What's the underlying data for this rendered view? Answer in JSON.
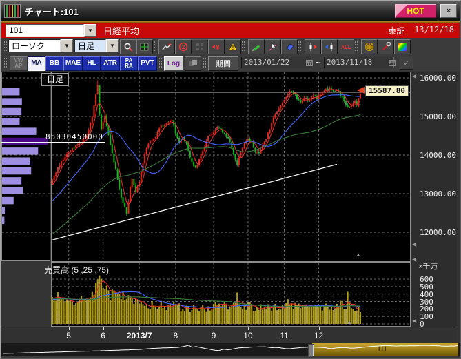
{
  "window": {
    "title": "チャート:101",
    "hot_button": "HOT",
    "close_button": "×"
  },
  "banner": {
    "symbol_code": "101",
    "symbol_name": "日経平均",
    "exchange": "東証",
    "date": "13/12/18"
  },
  "toolbar_main": {
    "chart_type_select": "ローソク",
    "timeframe_select": "日足",
    "icons": [
      {
        "name": "zoom-icon"
      },
      {
        "name": "grid-settings-icon"
      },
      {
        "name": "trend-tool-icon"
      },
      {
        "name": "compare-icon",
        "label": "2"
      },
      {
        "name": "layout-grid-icon",
        "disabled": true
      },
      {
        "name": "price-yen-icon",
        "label": "¥"
      },
      {
        "name": "alert-icon",
        "label": "!"
      },
      {
        "name": "draw-pencil-icon"
      },
      {
        "name": "select-cursor-icon"
      },
      {
        "name": "eraser-icon"
      },
      {
        "name": "candle-forward-icon"
      },
      {
        "name": "candle-back-icon"
      },
      {
        "name": "show-all-icon",
        "label": "ALL"
      },
      {
        "name": "web-link-icon"
      },
      {
        "name": "settings-wrench-icon"
      },
      {
        "name": "color-palette-icon"
      }
    ]
  },
  "toolbar_indicators": {
    "buttons": [
      {
        "label": "VWAP",
        "display": "VW\nAP",
        "state": "disabled"
      },
      {
        "label": "MA",
        "display": "MA",
        "state": "active"
      },
      {
        "label": "BB",
        "display": "BB",
        "state": "normal"
      },
      {
        "label": "MAE",
        "display": "MAE",
        "state": "normal"
      },
      {
        "label": "HL",
        "display": "HL",
        "state": "normal"
      },
      {
        "label": "ATR",
        "display": "ATR",
        "state": "normal"
      },
      {
        "label": "PARA",
        "display": "PA\nRA",
        "state": "normal"
      },
      {
        "label": "PVT",
        "display": "PVT",
        "state": "normal"
      }
    ],
    "log_button": "Log",
    "period_button": "期間",
    "date_from": "2013/01/22",
    "date_to": "2013/11/18",
    "range_separator": "~",
    "apply_check": "✓"
  },
  "chart_data": {
    "type": "candlestick",
    "pane_label": "日足",
    "volume_pane_label": "売買高 (5 ,25 ,75)",
    "volume_axis_unit": "×千万",
    "price_axis": {
      "tick_labels": [
        "16000.00",
        "15000.00",
        "14000.00",
        "13000.00",
        "12000.00"
      ],
      "tick_values": [
        16000,
        15000,
        14000,
        13000,
        12000
      ]
    },
    "volume_axis": {
      "tick_labels": [
        "600",
        "500",
        "400",
        "300",
        "200",
        "100",
        "0"
      ],
      "tick_values": [
        600,
        500,
        400,
        300,
        200,
        100,
        0
      ]
    },
    "x_axis": {
      "labels": [
        "5",
        "6",
        "2013/7",
        "8",
        "9",
        "10",
        "11",
        "12"
      ],
      "bold_index": 2,
      "tick_days": [
        9,
        28,
        48,
        68,
        89,
        108,
        128,
        147
      ]
    },
    "last_price": 15587.8,
    "last_price_label": "15587.80",
    "volume_at_price_label": "85030450000",
    "volume_at_price_level": 14330,
    "resistance_level": 15630,
    "resistance_from_day": 25,
    "trend_line": {
      "from_day": 0,
      "from_price": 11800,
      "to_day": 157,
      "to_price": 13760
    },
    "extremes": {
      "high_day": 25,
      "high": 15940,
      "low_day": 41,
      "low": 12415
    },
    "visible_days": 171,
    "up_color": "#e0281e",
    "down_color": "#17b41e",
    "volume_bar_color": "#b2a01c",
    "ma_lines": [
      {
        "period": 5,
        "color": "#e03028"
      },
      {
        "period": 25,
        "color": "#4266ff"
      },
      {
        "period": 75,
        "color": "#3e7c3c"
      }
    ],
    "price_anchors": [
      [
        0,
        13350
      ],
      [
        5,
        13850
      ],
      [
        9,
        14100
      ],
      [
        14,
        14250
      ],
      [
        19,
        14500
      ],
      [
        22,
        15000
      ],
      [
        24,
        15550
      ],
      [
        25,
        15800
      ],
      [
        26,
        15050
      ],
      [
        27,
        14700
      ],
      [
        29,
        15050
      ],
      [
        30,
        14750
      ],
      [
        33,
        14050
      ],
      [
        36,
        13400
      ],
      [
        38,
        12900
      ],
      [
        41,
        12500
      ],
      [
        43,
        13150
      ],
      [
        44,
        13350
      ],
      [
        46,
        13050
      ],
      [
        48,
        13300
      ],
      [
        51,
        14000
      ],
      [
        53,
        14300
      ],
      [
        56,
        14400
      ],
      [
        58,
        14600
      ],
      [
        60,
        14750
      ],
      [
        64,
        14820
      ],
      [
        66,
        14900
      ],
      [
        68,
        14580
      ],
      [
        70,
        14320
      ],
      [
        72,
        14480
      ],
      [
        74,
        14280
      ],
      [
        76,
        13950
      ],
      [
        79,
        13650
      ],
      [
        81,
        13900
      ],
      [
        84,
        14200
      ],
      [
        86,
        14480
      ],
      [
        89,
        14620
      ],
      [
        91,
        14730
      ],
      [
        94,
        14580
      ],
      [
        97,
        14440
      ],
      [
        99,
        14180
      ],
      [
        101,
        13900
      ],
      [
        102,
        13760
      ],
      [
        104,
        14080
      ],
      [
        106,
        14280
      ],
      [
        108,
        14440
      ],
      [
        110,
        14330
      ],
      [
        112,
        14090
      ],
      [
        114,
        14060
      ],
      [
        116,
        14290
      ],
      [
        118,
        14430
      ],
      [
        120,
        14690
      ],
      [
        122,
        14950
      ],
      [
        125,
        15180
      ],
      [
        128,
        15420
      ],
      [
        130,
        15600
      ],
      [
        132,
        15660
      ],
      [
        135,
        15480
      ],
      [
        137,
        15340
      ],
      [
        139,
        15490
      ],
      [
        141,
        15420
      ],
      [
        144,
        15560
      ],
      [
        146,
        15470
      ],
      [
        148,
        15600
      ],
      [
        151,
        15680
      ],
      [
        153,
        15710
      ],
      [
        155,
        15640
      ],
      [
        157,
        15700
      ],
      [
        160,
        15480
      ],
      [
        162,
        15330
      ],
      [
        164,
        15220
      ],
      [
        167,
        15420
      ],
      [
        168,
        15300
      ],
      [
        170,
        15587.8
      ]
    ],
    "volume_anchors": [
      [
        0,
        330
      ],
      [
        5,
        360
      ],
      [
        9,
        330
      ],
      [
        14,
        300
      ],
      [
        19,
        400
      ],
      [
        24,
        520
      ],
      [
        26,
        650
      ],
      [
        28,
        500
      ],
      [
        31,
        430
      ],
      [
        36,
        390
      ],
      [
        41,
        350
      ],
      [
        46,
        300
      ],
      [
        48,
        280
      ],
      [
        53,
        260
      ],
      [
        58,
        250
      ],
      [
        64,
        240
      ],
      [
        68,
        230
      ],
      [
        72,
        210
      ],
      [
        76,
        200
      ],
      [
        81,
        195
      ],
      [
        86,
        210
      ],
      [
        89,
        230
      ],
      [
        94,
        255
      ],
      [
        97,
        235
      ],
      [
        101,
        225
      ],
      [
        104,
        235
      ],
      [
        108,
        240
      ],
      [
        112,
        215
      ],
      [
        116,
        210
      ],
      [
        120,
        225
      ],
      [
        125,
        230
      ],
      [
        130,
        245
      ],
      [
        135,
        230
      ],
      [
        139,
        220
      ],
      [
        144,
        230
      ],
      [
        148,
        225
      ],
      [
        153,
        235
      ],
      [
        157,
        245
      ],
      [
        162,
        250
      ],
      [
        166,
        230
      ],
      [
        170,
        180
      ]
    ],
    "volume_spikes": [
      [
        26,
        650
      ],
      [
        102,
        420
      ],
      [
        130,
        330
      ],
      [
        163,
        430
      ]
    ],
    "prepend": {
      "days": 75,
      "path": [
        [
          -75,
          10700
        ],
        [
          -25,
          12300
        ],
        [
          -1,
          13250
        ]
      ],
      "volume": 340
    },
    "seed": 20131218,
    "volume_profile": {
      "bar_fracs": [
        0.38,
        0.43,
        0.42,
        0.38,
        0.74,
        1.0,
        0.78,
        0.6,
        0.63,
        0.42,
        0.45,
        0.25,
        0.06,
        0.05
      ],
      "max_index": 5,
      "bar_color": "#9e8fe2",
      "max_bar_color": "#4a0a86"
    }
  },
  "navigator": {
    "grip_label": "III"
  }
}
